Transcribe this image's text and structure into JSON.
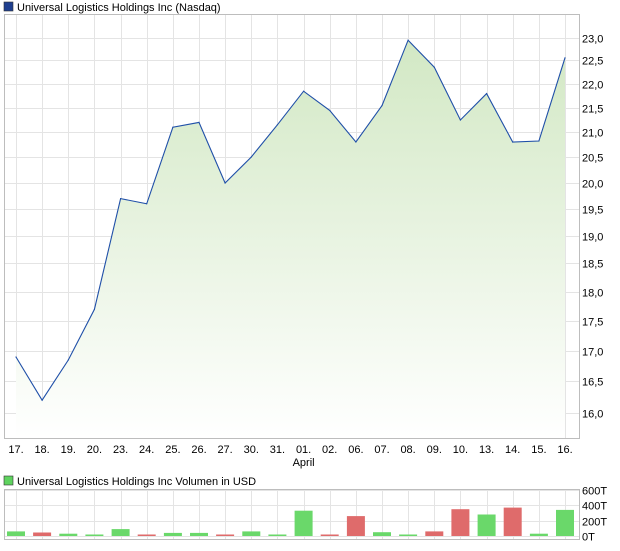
{
  "chart_data": [
    {
      "type": "area",
      "title": "Universal Logistics Holdings Inc (Nasdaq)",
      "legend_color": "#1f3f8f",
      "line_color": "#1f4fa8",
      "fill_top_color": "#d2e8c4",
      "fill_bottom_color": "#ffffff",
      "x": [
        "17.",
        "18.",
        "19.",
        "20.",
        "23.",
        "24.",
        "25.",
        "26.",
        "27.",
        "30.",
        "31.",
        "01.",
        "02.",
        "06.",
        "07.",
        "08.",
        "09.",
        "10.",
        "13.",
        "14.",
        "15.",
        "16."
      ],
      "x_sublabel": {
        "index": 11,
        "text": "April"
      },
      "values": [
        16.9,
        16.2,
        16.85,
        17.7,
        19.7,
        19.6,
        21.1,
        21.2,
        20.0,
        20.5,
        21.15,
        21.85,
        21.45,
        20.8,
        21.55,
        22.95,
        22.35,
        21.25,
        21.8,
        20.8,
        20.82,
        22.55
      ],
      "y_ticks": [
        "23,0",
        "22,5",
        "22,0",
        "21,5",
        "21,0",
        "20,5",
        "20,0",
        "19,5",
        "19,0",
        "18,5",
        "18,0",
        "17,5",
        "17,0",
        "16,5",
        "16,0"
      ],
      "y_tick_values": [
        23.0,
        22.5,
        22.0,
        21.5,
        21.0,
        20.5,
        20.0,
        19.5,
        19.0,
        18.5,
        18.0,
        17.5,
        17.0,
        16.5,
        16.0
      ],
      "grid": true
    },
    {
      "type": "bar",
      "title": "Universal Logistics Holdings Inc Volumen in USD",
      "legend_color": "#5fd35f",
      "up_color": "#6ad86a",
      "down_color": "#df6b6b",
      "categories": [
        "17.",
        "18.",
        "19.",
        "20.",
        "23.",
        "24.",
        "25.",
        "26.",
        "27.",
        "30.",
        "31.",
        "01.",
        "02.",
        "06.",
        "07.",
        "08.",
        "09.",
        "10.",
        "13.",
        "14.",
        "15.",
        "16."
      ],
      "values": [
        60,
        45,
        30,
        20,
        90,
        20,
        40,
        40,
        20,
        60,
        20,
        330,
        20,
        260,
        50,
        20,
        60,
        350,
        280,
        370,
        30,
        340
      ],
      "directions": [
        "up",
        "down",
        "up",
        "up",
        "up",
        "down",
        "up",
        "up",
        "down",
        "up",
        "up",
        "up",
        "down",
        "down",
        "up",
        "up",
        "down",
        "down",
        "up",
        "down",
        "up",
        "up"
      ],
      "y_ticks": [
        "600T",
        "400T",
        "200T",
        "0T"
      ],
      "y_tick_values": [
        600,
        400,
        200,
        0
      ],
      "ylim": [
        0,
        600
      ],
      "grid": true
    }
  ]
}
